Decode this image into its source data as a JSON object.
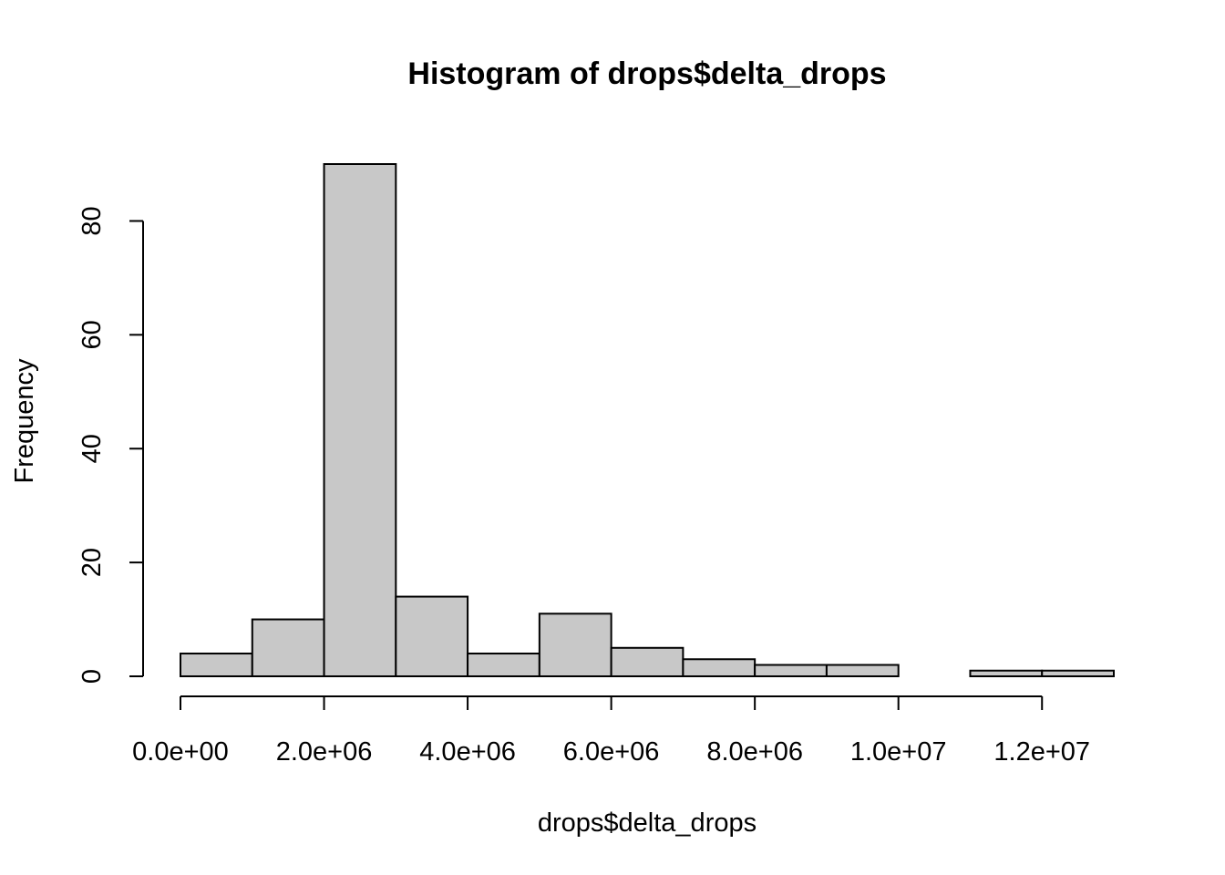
{
  "chart_data": {
    "type": "bar",
    "title": "Histogram of drops$delta_drops",
    "xlabel": "drops$delta_drops",
    "ylabel": "Frequency",
    "bin_edges": [
      0,
      1000000,
      2000000,
      3000000,
      4000000,
      5000000,
      6000000,
      7000000,
      8000000,
      9000000,
      10000000,
      11000000,
      12000000,
      13000000
    ],
    "values": [
      4,
      10,
      90,
      14,
      4,
      11,
      5,
      3,
      2,
      2,
      0,
      1,
      1
    ],
    "xlim": [
      0,
      13000000
    ],
    "ylim": [
      0,
      90
    ],
    "x_ticks": [
      0,
      2000000,
      4000000,
      6000000,
      8000000,
      10000000,
      12000000
    ],
    "x_tick_labels": [
      "0.0e+00",
      "2.0e+06",
      "4.0e+06",
      "6.0e+06",
      "8.0e+06",
      "1.0e+07",
      "1.2e+07"
    ],
    "y_ticks": [
      0,
      20,
      40,
      60,
      80
    ],
    "y_tick_labels": [
      "0",
      "20",
      "40",
      "60",
      "80"
    ],
    "bar_fill": "#c8c8c8",
    "bar_stroke": "#000000",
    "grid": false
  }
}
